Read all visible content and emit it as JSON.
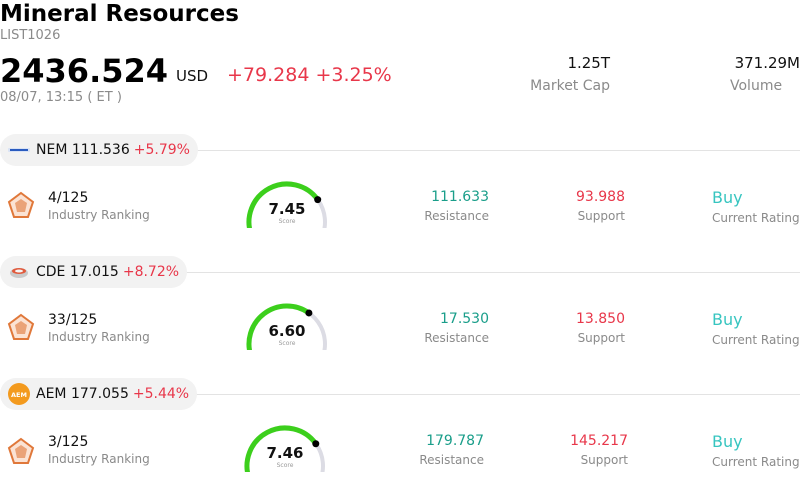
{
  "header": {
    "title": "Mineral Resources",
    "ticker": "LIST1026",
    "price": "2436.524",
    "currency": "USD",
    "change": "+79.284 +3.25%",
    "timestamp": "08/07, 13:15  ( ET )",
    "market_cap_value": "1.25T",
    "market_cap_label": "Market Cap",
    "volume_value": "371.29M",
    "volume_label": "Volume"
  },
  "colors": {
    "up": "#e8374a",
    "resistance": "#1a9e8a",
    "buy": "#37c5c0",
    "gauge": "#3ccf1c"
  },
  "stocks": [
    {
      "symbol_line": "NEM 111.536",
      "pct": "+5.79%",
      "rank": "4/125",
      "rank_label": "Industry Ranking",
      "score": "7.45",
      "score_value": 7.45,
      "score_label": "Score",
      "resistance": "111.633",
      "resistance_label": "Resistance",
      "support": "93.988",
      "support_label": "Support",
      "rating": "Buy",
      "rating_label": "Current Rating"
    },
    {
      "symbol_line": "CDE 17.015",
      "pct": "+8.72%",
      "rank": "33/125",
      "rank_label": "Industry Ranking",
      "score": "6.60",
      "score_value": 6.6,
      "score_label": "Score",
      "resistance": "17.530",
      "resistance_label": "Resistance",
      "support": "13.850",
      "support_label": "Support",
      "rating": "Buy",
      "rating_label": "Current Rating"
    },
    {
      "symbol_line": "AEM 177.055",
      "pct": "+5.44%",
      "logo_text": "AEM",
      "rank": "3/125",
      "rank_label": "Industry Ranking",
      "score": "7.46",
      "score_value": 7.46,
      "score_label": "Score",
      "resistance": "179.787",
      "resistance_label": "Resistance",
      "support": "145.217",
      "support_label": "Support",
      "rating": "Buy",
      "rating_label": "Current Rating"
    }
  ]
}
